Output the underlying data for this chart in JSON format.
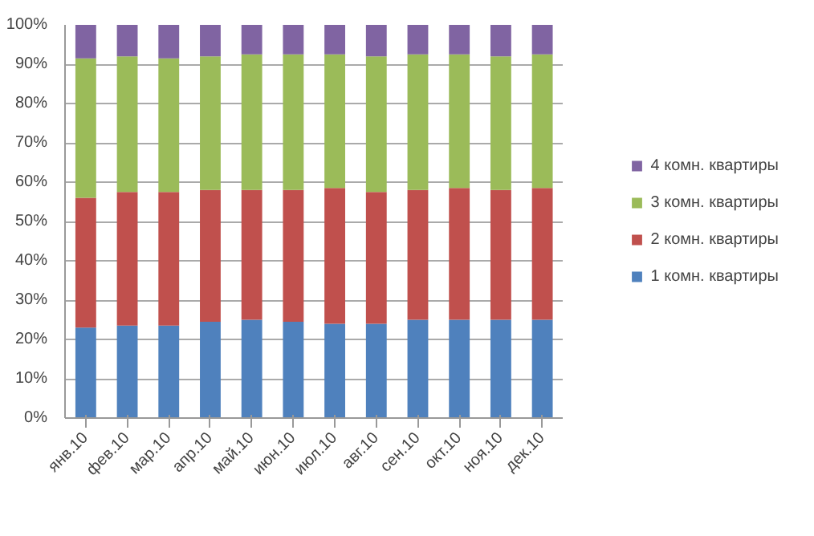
{
  "chart_data": {
    "type": "bar",
    "stacked": true,
    "categories": [
      "янв.10",
      "фев.10",
      "мар.10",
      "апр.10",
      "май.10",
      "июн.10",
      "июл.10",
      "авг.10",
      "сен.10",
      "окт.10",
      "ноя.10",
      "дек.10"
    ],
    "series": [
      {
        "name": "1 комн. квартиры",
        "color": "#4f81bd",
        "values": [
          23,
          23.5,
          23.5,
          24.5,
          25,
          24.5,
          24,
          24,
          25,
          25,
          25,
          25
        ]
      },
      {
        "name": "2 комн. квартиры",
        "color": "#c0504d",
        "values": [
          33,
          34,
          34,
          33.5,
          33,
          33.5,
          34.5,
          33.5,
          33,
          33.5,
          33,
          33.5
        ]
      },
      {
        "name": "3 комн. квартиры",
        "color": "#9bbb59",
        "values": [
          35.5,
          34.5,
          34,
          34,
          34.5,
          34.5,
          34,
          34.5,
          34.5,
          34,
          34,
          34
        ]
      },
      {
        "name": "4 комн. квартиры",
        "color": "#8064a2",
        "values": [
          8.5,
          8,
          8.5,
          8,
          7.5,
          7.5,
          7.5,
          8,
          7.5,
          7.5,
          8,
          7.5
        ]
      }
    ],
    "ylim": [
      0,
      100
    ],
    "yticks": [
      {
        "value": 0,
        "label": "0%"
      },
      {
        "value": 10,
        "label": "10%"
      },
      {
        "value": 20,
        "label": "20%"
      },
      {
        "value": 30,
        "label": "30%"
      },
      {
        "value": 40,
        "label": "40%"
      },
      {
        "value": 50,
        "label": "50%"
      },
      {
        "value": 60,
        "label": "60%"
      },
      {
        "value": 70,
        "label": "70%"
      },
      {
        "value": 80,
        "label": "80%"
      },
      {
        "value": 90,
        "label": "90%"
      },
      {
        "value": 100,
        "label": "100%"
      }
    ],
    "grid": "y",
    "legend": "right"
  }
}
